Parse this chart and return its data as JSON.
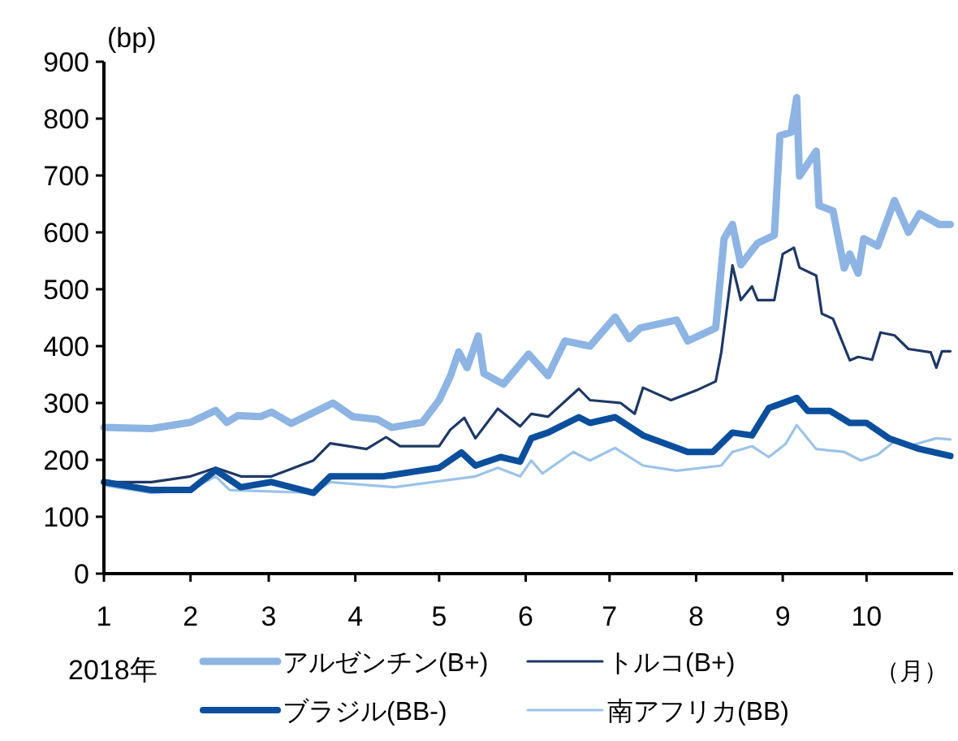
{
  "chart_data": {
    "type": "line",
    "ylabel": "(bp)",
    "xlabel": "（月）",
    "annotations": [
      "2018年"
    ],
    "xlim": [
      "2018-01-01",
      "2018-11-01"
    ],
    "xticks": [
      {
        "value": "2018-01-01",
        "label": "1"
      },
      {
        "value": "2018-02-01",
        "label": "2"
      },
      {
        "value": "2018-03-01",
        "label": "3"
      },
      {
        "value": "2018-04-01",
        "label": "4"
      },
      {
        "value": "2018-05-01",
        "label": "5"
      },
      {
        "value": "2018-06-01",
        "label": "6"
      },
      {
        "value": "2018-07-01",
        "label": "7"
      },
      {
        "value": "2018-08-01",
        "label": "8"
      },
      {
        "value": "2018-09-01",
        "label": "9"
      },
      {
        "value": "2018-10-01",
        "label": "10"
      }
    ],
    "ylim": [
      0,
      900
    ],
    "yticks": [
      0,
      100,
      200,
      300,
      400,
      500,
      600,
      700,
      800,
      900
    ],
    "grid": false,
    "legend": "bottom",
    "series": [
      {
        "name": "アルゼンチン(B+)",
        "color": "#8db4e2",
        "x": [
          "2018-01-01",
          "2018-01-18",
          "2018-02-01",
          "2018-02-10",
          "2018-02-14",
          "2018-02-18",
          "2018-02-26",
          "2018-03-02",
          "2018-03-09",
          "2018-03-24",
          "2018-03-31",
          "2018-04-09",
          "2018-04-14",
          "2018-04-25",
          "2018-05-01",
          "2018-05-05",
          "2018-05-08",
          "2018-05-11",
          "2018-05-15",
          "2018-05-17",
          "2018-05-24",
          "2018-06-02",
          "2018-06-09",
          "2018-06-15",
          "2018-06-24",
          "2018-07-03",
          "2018-07-08",
          "2018-07-12",
          "2018-07-25",
          "2018-07-29",
          "2018-08-08",
          "2018-08-11",
          "2018-08-14",
          "2018-08-17",
          "2018-08-23",
          "2018-08-29",
          "2018-08-31",
          "2018-09-04",
          "2018-09-06",
          "2018-09-07",
          "2018-09-13",
          "2018-09-14",
          "2018-09-19",
          "2018-09-23",
          "2018-09-25",
          "2018-09-28",
          "2018-09-30",
          "2018-10-05",
          "2018-10-11",
          "2018-10-16",
          "2018-10-20",
          "2018-10-27",
          "2018-10-31"
        ],
        "values": [
          257,
          255,
          266,
          287,
          266,
          278,
          276,
          284,
          264,
          300,
          276,
          271,
          257,
          266,
          305,
          347,
          390,
          362,
          418,
          352,
          333,
          386,
          348,
          409,
          400,
          451,
          413,
          432,
          446,
          409,
          432,
          589,
          614,
          543,
          581,
          595,
          770,
          776,
          837,
          699,
          743,
          647,
          638,
          537,
          562,
          528,
          589,
          576,
          656,
          600,
          633,
          614,
          614
        ]
      },
      {
        "name": "トルコ(B+)",
        "color": "#1f3864",
        "x": [
          "2018-01-01",
          "2018-01-18",
          "2018-02-01",
          "2018-02-10",
          "2018-02-19",
          "2018-03-02",
          "2018-03-17",
          "2018-03-23",
          "2018-04-05",
          "2018-04-12",
          "2018-04-17",
          "2018-05-01",
          "2018-05-05",
          "2018-05-10",
          "2018-05-14",
          "2018-05-22",
          "2018-05-30",
          "2018-06-03",
          "2018-06-09",
          "2018-06-20",
          "2018-06-24",
          "2018-07-05",
          "2018-07-10",
          "2018-07-13",
          "2018-07-23",
          "2018-08-01",
          "2018-08-08",
          "2018-08-10",
          "2018-08-14",
          "2018-08-17",
          "2018-08-21",
          "2018-08-23",
          "2018-08-29",
          "2018-09-01",
          "2018-09-05",
          "2018-09-07",
          "2018-09-13",
          "2018-09-15",
          "2018-09-19",
          "2018-09-25",
          "2018-09-28",
          "2018-10-03",
          "2018-10-06",
          "2018-10-11",
          "2018-10-16",
          "2018-10-24",
          "2018-10-26",
          "2018-10-28",
          "2018-10-31"
        ],
        "values": [
          161,
          161,
          171,
          186,
          171,
          171,
          199,
          229,
          219,
          240,
          224,
          224,
          253,
          274,
          238,
          290,
          259,
          281,
          276,
          325,
          305,
          300,
          281,
          327,
          305,
          322,
          338,
          389,
          542,
          481,
          505,
          481,
          481,
          562,
          573,
          538,
          524,
          457,
          448,
          375,
          381,
          376,
          424,
          419,
          395,
          389,
          362,
          391,
          391
        ]
      },
      {
        "name": "ブラジル(BB-)",
        "color": "#0b4f9c",
        "x": [
          "2018-01-01",
          "2018-01-18",
          "2018-02-01",
          "2018-02-10",
          "2018-02-19",
          "2018-03-02",
          "2018-03-17",
          "2018-03-23",
          "2018-04-11",
          "2018-05-01",
          "2018-05-09",
          "2018-05-14",
          "2018-05-23",
          "2018-05-30",
          "2018-06-03",
          "2018-06-09",
          "2018-06-20",
          "2018-06-24",
          "2018-07-03",
          "2018-07-13",
          "2018-07-29",
          "2018-08-07",
          "2018-08-14",
          "2018-08-21",
          "2018-08-27",
          "2018-09-06",
          "2018-09-10",
          "2018-09-18",
          "2018-09-25",
          "2018-10-01",
          "2018-10-09",
          "2018-10-20",
          "2018-10-31"
        ],
        "values": [
          161,
          147,
          147,
          182,
          152,
          161,
          142,
          171,
          171,
          186,
          213,
          190,
          205,
          197,
          238,
          248,
          275,
          265,
          275,
          243,
          214,
          214,
          248,
          243,
          291,
          309,
          286,
          286,
          265,
          265,
          238,
          219,
          207
        ]
      },
      {
        "name": "南アフリカ(BB)",
        "color": "#9dc3e6",
        "x": [
          "2018-01-01",
          "2018-01-18",
          "2018-02-01",
          "2018-02-10",
          "2018-02-15",
          "2018-03-17",
          "2018-03-23",
          "2018-04-15",
          "2018-05-14",
          "2018-05-22",
          "2018-05-30",
          "2018-06-03",
          "2018-06-07",
          "2018-06-18",
          "2018-06-24",
          "2018-07-03",
          "2018-07-13",
          "2018-07-25",
          "2018-08-10",
          "2018-08-14",
          "2018-08-21",
          "2018-08-27",
          "2018-09-02",
          "2018-09-06",
          "2018-09-13",
          "2018-09-23",
          "2018-09-29",
          "2018-10-05",
          "2018-10-11",
          "2018-10-16",
          "2018-10-26",
          "2018-10-31"
        ],
        "values": [
          155,
          142,
          147,
          171,
          147,
          142,
          161,
          152,
          171,
          186,
          171,
          199,
          176,
          214,
          199,
          221,
          190,
          181,
          190,
          214,
          224,
          205,
          228,
          261,
          219,
          214,
          199,
          209,
          233,
          224,
          238,
          236
        ]
      }
    ]
  }
}
